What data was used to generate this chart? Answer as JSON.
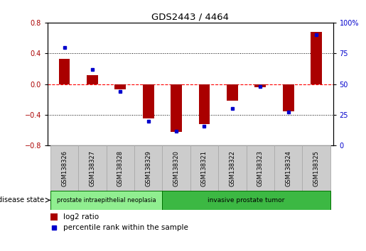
{
  "title": "GDS2443 / 4464",
  "samples": [
    "GSM138326",
    "GSM138327",
    "GSM138328",
    "GSM138329",
    "GSM138320",
    "GSM138321",
    "GSM138322",
    "GSM138323",
    "GSM138324",
    "GSM138325"
  ],
  "log2_ratio": [
    0.33,
    0.12,
    -0.07,
    -0.45,
    -0.62,
    -0.52,
    -0.22,
    -0.04,
    -0.35,
    0.68
  ],
  "percentile_rank": [
    80,
    62,
    44,
    20,
    12,
    16,
    30,
    48,
    27,
    90
  ],
  "ylim_left": [
    -0.8,
    0.8
  ],
  "ylim_right": [
    0,
    100
  ],
  "yticks_left": [
    -0.8,
    -0.4,
    0.0,
    0.4,
    0.8
  ],
  "yticks_right": [
    0,
    25,
    50,
    75,
    100
  ],
  "bar_color": "#aa0000",
  "dot_color": "#0000cc",
  "group1_label": "prostate intraepithelial neoplasia",
  "group2_label": "invasive prostate tumor",
  "group1_indices": [
    0,
    1,
    2,
    3
  ],
  "group2_indices": [
    4,
    5,
    6,
    7,
    8,
    9
  ],
  "disease_state_label": "disease state",
  "legend_log2": "log2 ratio",
  "legend_pct": "percentile rank within the sample",
  "group1_color": "#90ee90",
  "group2_color": "#3cb843",
  "group_border_color": "#007000",
  "gray_box_color": "#cccccc",
  "gray_box_edge": "#aaaaaa"
}
